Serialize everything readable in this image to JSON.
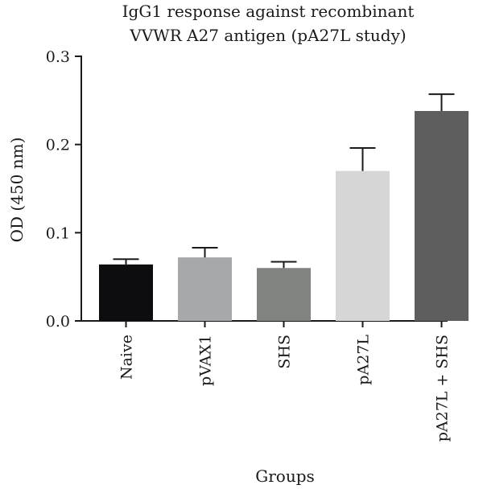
{
  "chart_data": {
    "type": "bar",
    "title_lines": [
      "IgG1 response against recombinant",
      "VVWR A27 antigen (pA27L study)"
    ],
    "xlabel": "Groups",
    "ylabel": "OD (450 nm)",
    "ylim": [
      0,
      0.3
    ],
    "yticks": [
      "0.0",
      "0.1",
      "0.2",
      "0.3"
    ],
    "categories": [
      "Naive",
      "pVAX1",
      "SHS",
      "pA27L",
      "pA27L + SHS"
    ],
    "values": [
      0.064,
      0.072,
      0.06,
      0.17,
      0.238
    ],
    "error_upper": [
      0.07,
      0.083,
      0.067,
      0.196,
      0.257
    ],
    "colors": [
      "#0d0d0f",
      "#a7a8ab",
      "#818381",
      "#d5d6d5",
      "#5e5e5f"
    ],
    "grid": false,
    "legend": "none"
  }
}
